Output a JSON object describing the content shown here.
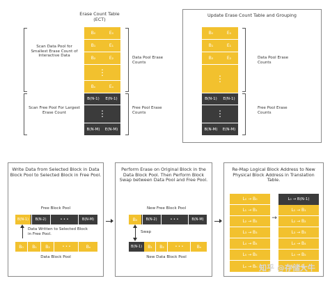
{
  "top_left": {
    "title_line1": "Erase Count Table",
    "title_line2": "(ECT)",
    "data_rows": [
      {
        "b": "B₀",
        "e": "E₀"
      },
      {
        "b": "B₁",
        "e": "E₁"
      },
      {
        "b": "B₂",
        "e": "E₂"
      },
      {
        "b": "Bₙ",
        "e": "Eₙ"
      }
    ],
    "free_rows": [
      {
        "b": "B(N-1)",
        "e": "E(N-1)"
      },
      {
        "b": "B(N-M)",
        "e": "E(N-M)"
      }
    ],
    "ellipsis": "⋮",
    "scan_data_label": "Scan Data Pool for Smallest Erase Count of Interactive Data",
    "scan_free_label": "Scan Free Pool For Largest Erase Count",
    "data_pool_label": "Data Pool Erase Counts",
    "free_pool_label": "Free Pool Erase Counts"
  },
  "top_right": {
    "title": "Update Erase Count Table and Grouping",
    "data_rows": [
      {
        "b": "B₀",
        "e": "E₀"
      },
      {
        "b": "B₁",
        "e": "E₁"
      },
      {
        "b": "B₂",
        "e": "E₂"
      }
    ],
    "free_rows": [
      {
        "b": "B(N-1)",
        "e": "E(N-1)"
      },
      {
        "b": "B(N-M)",
        "e": "E(N-M)"
      }
    ],
    "ellipsis": "⋮",
    "data_pool_label": "Data Pool Erase Counts",
    "free_pool_label": "Free Pool Erase Counts"
  },
  "step1": {
    "title": "Write Data from Selected Block in Data Block Pool to Selected Block in Free Pool.",
    "free_pool_label": "Free Block Pool",
    "free_cells": [
      "B(N-1)",
      "B(N-2)",
      "• • •",
      "B(N-M)"
    ],
    "note": "Data Written to Selected Block in Free Pool.",
    "data_cells": [
      "B₀",
      "B₁",
      "B₂",
      "• • •",
      "Bₙ"
    ],
    "data_pool_label": "Data Block Pool"
  },
  "step2": {
    "title": "Perform Erase on Original Block in the Data Block Pool. Then Perform Block Swap between Data Pool and Free Pool.",
    "free_pool_label": "New Free Block Pool",
    "free_cells": [
      "B₀",
      "B(N-2)",
      "• • •",
      "B(N-M)"
    ],
    "swap_label": "Swap",
    "data_cells": [
      "B(N-1)",
      "B₁",
      "B₂",
      "• • •",
      "Bₙ"
    ],
    "data_pool_label": "New Data Block Pool"
  },
  "step3": {
    "title": "Re-Map Logical Block Address to New Physical Block Address in Translation Table.",
    "left_rows": [
      "L₀ → B₀",
      "L₁ → B₁",
      "L₂ → B₂",
      "L₃ → B₃",
      "L₄ → B₄",
      "L₅ → B₅",
      "Lₙ → Bₙ"
    ],
    "right_rows": [
      "L₀ → B(N-1)",
      "L₁ → B₁",
      "L₂ → B₂",
      "L₃ → B₃",
      "L₄ → B₄",
      "L₅ → B₅",
      "Lₙ → Bₙ"
    ],
    "map_arrow": "→"
  },
  "watermark": "知乎 @存储大牛",
  "colors": {
    "accent": "#f2c12e",
    "dark": "#3b3b3b"
  }
}
